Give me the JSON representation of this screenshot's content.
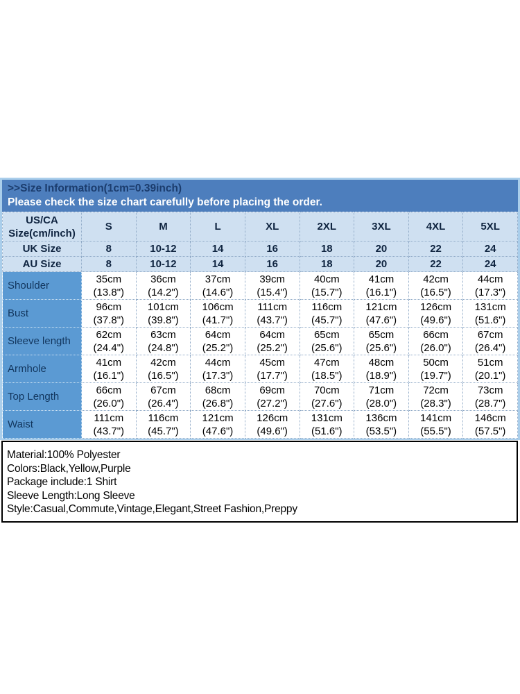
{
  "banner": {
    "title": ">>Size Information(1cm=0.39inch)",
    "subtitle": "Please check the size chart carefully before placing the order."
  },
  "size_table": {
    "corner": {
      "line1": "US/CA",
      "line2": "Size(cm/inch)"
    },
    "sizes": [
      "S",
      "M",
      "L",
      "XL",
      "2XL",
      "3XL",
      "4XL",
      "5XL"
    ],
    "conversion_rows": [
      {
        "label": "UK Size",
        "values": [
          "8",
          "10-12",
          "14",
          "16",
          "18",
          "20",
          "22",
          "24"
        ]
      },
      {
        "label": "AU Size",
        "values": [
          "8",
          "10-12",
          "14",
          "16",
          "18",
          "20",
          "22",
          "24"
        ]
      }
    ],
    "measurement_rows": [
      {
        "label": "Shoulder",
        "values": [
          [
            "35cm",
            "(13.8\")"
          ],
          [
            "36cm",
            "(14.2\")"
          ],
          [
            "37cm",
            "(14.6\")"
          ],
          [
            "39cm",
            "(15.4\")"
          ],
          [
            "40cm",
            "(15.7\")"
          ],
          [
            "41cm",
            "(16.1\")"
          ],
          [
            "42cm",
            "(16.5\")"
          ],
          [
            "44cm",
            "(17.3\")"
          ]
        ]
      },
      {
        "label": "Bust",
        "values": [
          [
            "96cm",
            "(37.8\")"
          ],
          [
            "101cm",
            "(39.8\")"
          ],
          [
            "106cm",
            "(41.7\")"
          ],
          [
            "111cm",
            "(43.7\")"
          ],
          [
            "116cm",
            "(45.7\")"
          ],
          [
            "121cm",
            "(47.6\")"
          ],
          [
            "126cm",
            "(49.6\")"
          ],
          [
            "131cm",
            "(51.6\")"
          ]
        ]
      },
      {
        "label": "Sleeve length",
        "values": [
          [
            "62cm",
            "(24.4\")"
          ],
          [
            "63cm",
            "(24.8\")"
          ],
          [
            "64cm",
            "(25.2\")"
          ],
          [
            "64cm",
            "(25.2\")"
          ],
          [
            "65cm",
            "(25.6\")"
          ],
          [
            "65cm",
            "(25.6\")"
          ],
          [
            "66cm",
            "(26.0\")"
          ],
          [
            "67cm",
            "(26.4\")"
          ]
        ]
      },
      {
        "label": "Armhole",
        "values": [
          [
            "41cm",
            "(16.1\")"
          ],
          [
            "42cm",
            "(16.5\")"
          ],
          [
            "44cm",
            "(17.3\")"
          ],
          [
            "45cm",
            "(17.7\")"
          ],
          [
            "47cm",
            "(18.5\")"
          ],
          [
            "48cm",
            "(18.9\")"
          ],
          [
            "50cm",
            "(19.7\")"
          ],
          [
            "51cm",
            "(20.1\")"
          ]
        ]
      },
      {
        "label": "Top Length",
        "values": [
          [
            "66cm",
            "(26.0\")"
          ],
          [
            "67cm",
            "(26.4\")"
          ],
          [
            "68cm",
            "(26.8\")"
          ],
          [
            "69cm",
            "(27.2\")"
          ],
          [
            "70cm",
            "(27.6\")"
          ],
          [
            "71cm",
            "(28.0\")"
          ],
          [
            "72cm",
            "(28.3\")"
          ],
          [
            "73cm",
            "(28.7\")"
          ]
        ]
      },
      {
        "label": "Waist",
        "values": [
          [
            "111cm",
            "(43.7\")"
          ],
          [
            "116cm",
            "(45.7\")"
          ],
          [
            "121cm",
            "(47.6\")"
          ],
          [
            "126cm",
            "(49.6\")"
          ],
          [
            "131cm",
            "(51.6\")"
          ],
          [
            "136cm",
            "(53.5\")"
          ],
          [
            "141cm",
            "(55.5\")"
          ],
          [
            "146cm",
            "(57.5\")"
          ]
        ]
      }
    ]
  },
  "product_info": {
    "lines": [
      "Material:100% Polyester",
      "Colors:Black,Yellow,Purple",
      "Package include:1 Shirt",
      "Sleeve Length:Long Sleeve",
      "Style:Casual,Commute,Vintage,Elegant,Street Fashion,Preppy"
    ]
  },
  "colors": {
    "banner_bg": "#4d7ebd",
    "banner_title": "#1b3c6d",
    "banner_subtitle": "#ffffff",
    "light_row_bg": "#cfe0f1",
    "label_col_bg": "#5b9ad3",
    "dark_text": "#0f2440",
    "outer_border": "#aaceeb"
  }
}
